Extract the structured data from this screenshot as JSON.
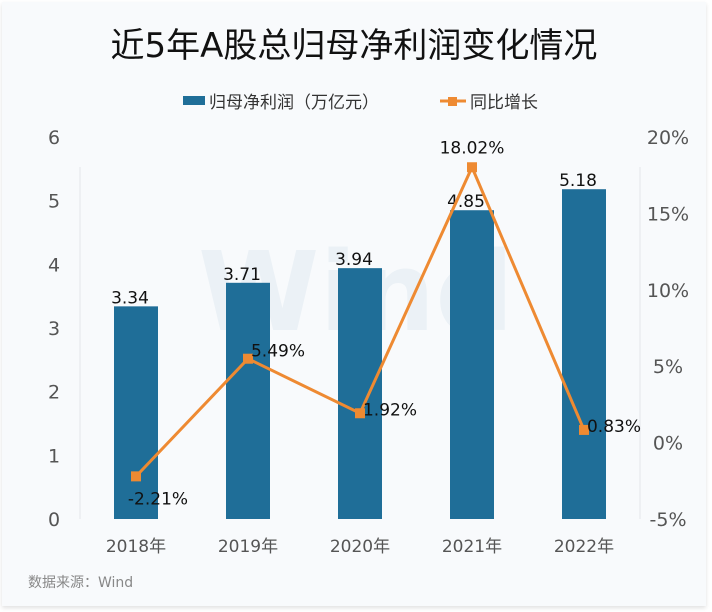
{
  "chart_data": {
    "type": "bar+line",
    "title": "近5年A股总归母净利润变化情况",
    "categories": [
      "2018年",
      "2019年",
      "2020年",
      "2021年",
      "2022年"
    ],
    "series": [
      {
        "name": "归母净利润（万亿元）",
        "type": "bar",
        "axis": "left",
        "values": [
          3.34,
          3.71,
          3.94,
          4.85,
          5.18
        ],
        "labels": [
          "3.34",
          "3.71",
          "3.94",
          "4.85",
          "5.18"
        ],
        "color": "#1f6e98"
      },
      {
        "name": "同比增长",
        "type": "line",
        "axis": "right",
        "values": [
          -2.21,
          5.49,
          1.92,
          18.02,
          0.83
        ],
        "labels": [
          "-2.21%",
          "5.49%",
          "1.92%",
          "18.02%",
          "0.83%"
        ],
        "color": "#ee8a32"
      }
    ],
    "left_axis": {
      "ylim": [
        0,
        6
      ],
      "ticks": [
        "0",
        "1",
        "2",
        "3",
        "4",
        "5",
        "6"
      ]
    },
    "right_axis": {
      "ylim": [
        -5,
        20
      ],
      "ticks": [
        "-5%",
        "0%",
        "5%",
        "10%",
        "15%",
        "20%"
      ]
    },
    "legend_position": "top",
    "grid": false
  },
  "source": "数据来源：Wind",
  "watermark": "Wind"
}
